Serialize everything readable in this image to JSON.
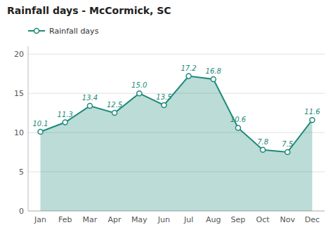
{
  "chart_data": {
    "type": "area",
    "title": "Rainfall days - McCormick, SC",
    "categories": [
      "Jan",
      "Feb",
      "Mar",
      "Apr",
      "May",
      "Jun",
      "Jul",
      "Aug",
      "Sep",
      "Oct",
      "Nov",
      "Dec"
    ],
    "series": [
      {
        "name": "Rainfall days",
        "color": "#1e8a7a",
        "values": [
          10.1,
          11.3,
          13.4,
          12.5,
          15.0,
          13.5,
          17.2,
          16.8,
          10.6,
          7.8,
          7.5,
          11.6
        ],
        "value_labels": [
          "10.1",
          "11.3",
          "13.4",
          "12.5",
          "15.0",
          "13.5",
          "17.2",
          "16.8",
          "10.6",
          "7.8",
          "7.5",
          "11.6"
        ]
      }
    ],
    "ylim": [
      0,
      21
    ],
    "yticks": [
      0,
      5,
      10,
      15,
      20
    ],
    "grid": true,
    "legend": "upper-left",
    "data_labels": true,
    "marker": "circle"
  }
}
